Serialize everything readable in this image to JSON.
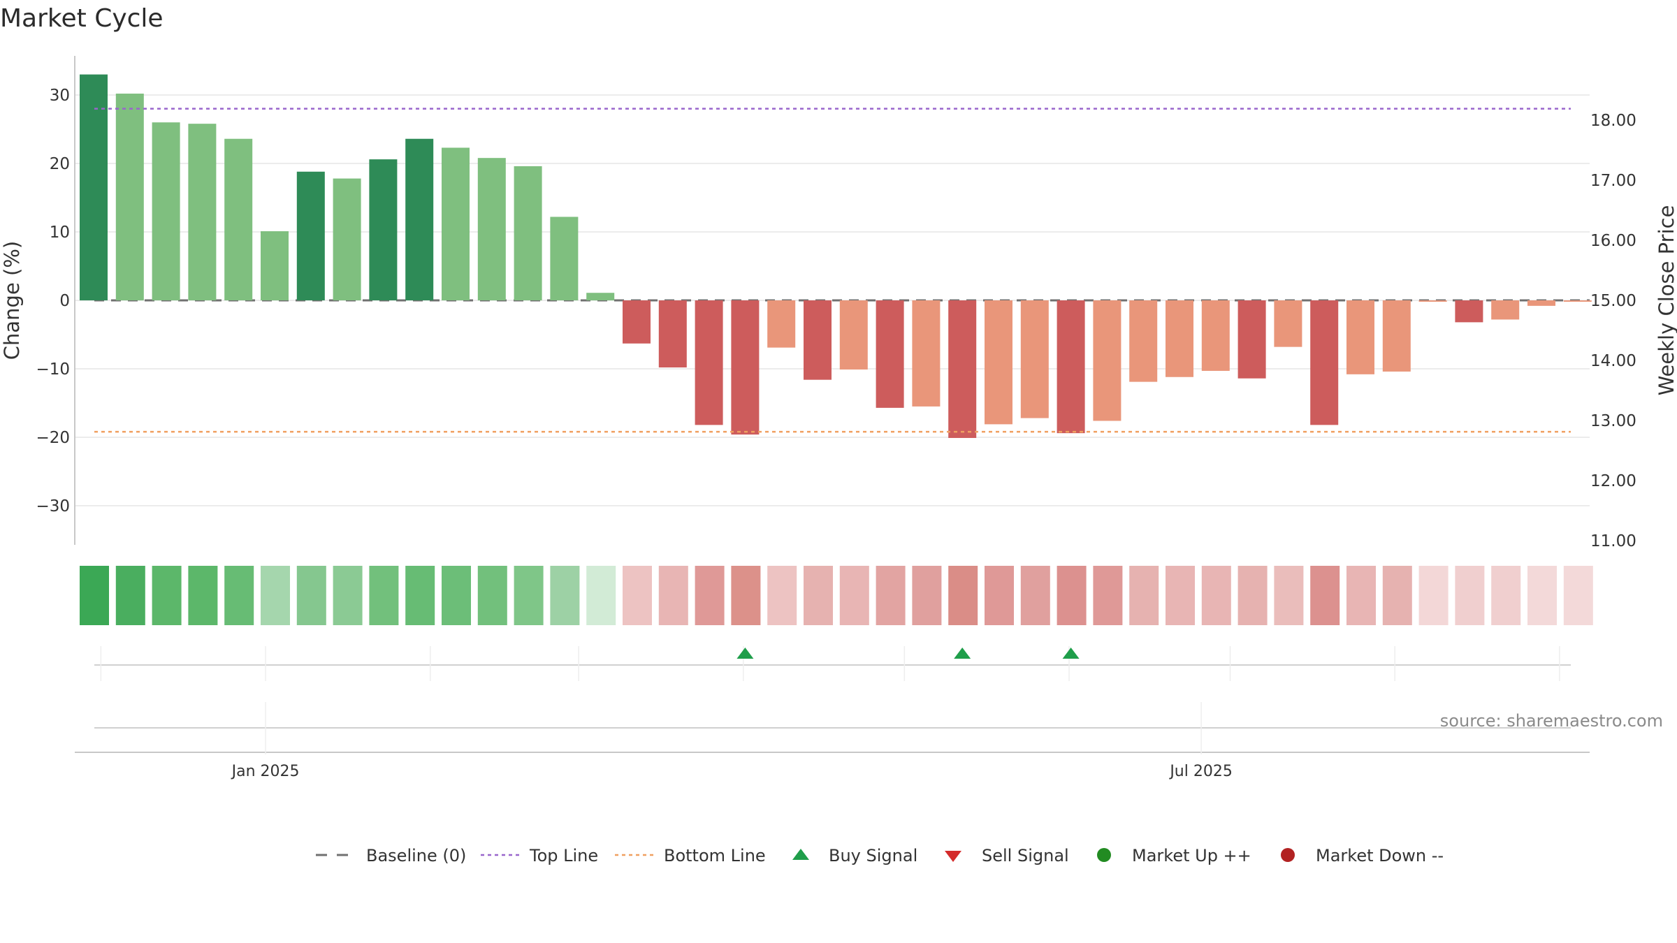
{
  "chart_data": {
    "type": "bar",
    "title": "Market Cycle",
    "ylabel_left": "Change (%)",
    "ylabel_right": "Weekly Close Price",
    "ylim_left": [
      -36,
      36
    ],
    "ylim_right": [
      10.6,
      19.0
    ],
    "left_ticks": [
      30,
      20,
      10,
      0,
      -10,
      -20,
      -30
    ],
    "left_tick_labels": [
      "30",
      "20",
      "10",
      "0",
      "−10",
      "−20",
      "−30"
    ],
    "right_ticks": [
      18,
      17,
      16,
      15,
      14,
      13,
      12,
      11
    ],
    "right_tick_labels": [
      "18.00",
      "17.00",
      "16.00",
      "15.00",
      "14.00",
      "13.00",
      "12.00",
      "11.00"
    ],
    "grid": true,
    "top_line": 28.0,
    "bottom_line": -19.2,
    "baseline": 0,
    "date_labels": [
      {
        "label": "Jan 2025",
        "index": 4.75
      },
      {
        "label": "Jul 2025",
        "index": 30.6
      }
    ],
    "values": [
      33.0,
      30.2,
      26.0,
      25.8,
      23.6,
      10.1,
      18.8,
      17.8,
      20.6,
      23.6,
      22.3,
      20.8,
      19.6,
      12.2,
      1.1,
      -6.3,
      -9.8,
      -18.2,
      -19.6,
      -6.9,
      -11.6,
      -10.1,
      -15.7,
      -15.5,
      -20.1,
      -18.1,
      -17.2,
      -19.4,
      -17.6,
      -11.9,
      -11.2,
      -10.3,
      -11.4,
      -6.8,
      -18.2,
      -10.8,
      -10.4,
      -0.2,
      -3.2,
      -2.8,
      -0.8,
      -0.2
    ],
    "bar_colors": [
      "#2e8b57",
      "#7fbf7f",
      "#7fbf7f",
      "#7fbf7f",
      "#7fbf7f",
      "#7fbf7f",
      "#2e8b57",
      "#7fbf7f",
      "#2e8b57",
      "#2e8b57",
      "#7fbf7f",
      "#7fbf7f",
      "#7fbf7f",
      "#7fbf7f",
      "#7fbf7f",
      "#cd5c5c",
      "#cd5c5c",
      "#cd5c5c",
      "#cd5c5c",
      "#e9967a",
      "#cd5c5c",
      "#e9967a",
      "#cd5c5c",
      "#e9967a",
      "#cd5c5c",
      "#e9967a",
      "#e9967a",
      "#cd5c5c",
      "#e9967a",
      "#e9967a",
      "#e9967a",
      "#e9967a",
      "#cd5c5c",
      "#e9967a",
      "#cd5c5c",
      "#e9967a",
      "#e9967a",
      "#e9967a",
      "#cd5c5c",
      "#e9967a",
      "#e9967a",
      "#e9967a"
    ],
    "heat_colors": [
      "#3ba855",
      "#4aae5f",
      "#5cb76a",
      "#5cb76a",
      "#67bc74",
      "#a5d6ad",
      "#85c78f",
      "#8bca94",
      "#72c07c",
      "#67bc74",
      "#6cbe78",
      "#72c07c",
      "#7fc688",
      "#9dd1a5",
      "#d2ebd6",
      "#edc3c2",
      "#e8b5b4",
      "#df9997",
      "#dc918a",
      "#edc3c2",
      "#e6b2b0",
      "#e8b5b4",
      "#e2a4a2",
      "#e0a09e",
      "#da8d87",
      "#df9997",
      "#e0a09e",
      "#dc918f",
      "#df9997",
      "#e6b2b0",
      "#e8b5b4",
      "#e8b5b4",
      "#e6b2b0",
      "#eabdbb",
      "#dc918f",
      "#e8b5b4",
      "#e6b2b0",
      "#f3d7d7",
      "#f0cfcf",
      "#f0cfcf",
      "#f3d9d9",
      "#f3d9d9"
    ],
    "buy_signals": [
      18,
      24,
      27
    ],
    "colors": {
      "baseline": "#707070",
      "top_line": "#9966cc",
      "bottom_line": "#f0a060",
      "buy": "#1f9e4a",
      "sell": "#d42b2b",
      "market_up": "#228b22",
      "market_down": "#b22222",
      "grid": "#e6e6e6",
      "axis": "#c8c8c8"
    }
  },
  "legend": [
    {
      "label": "Baseline (0)",
      "icon": "dash-line"
    },
    {
      "label": "Top Line",
      "icon": "dotted-purple-line"
    },
    {
      "label": "Bottom Line",
      "icon": "dotted-orange-line"
    },
    {
      "label": "Buy Signal",
      "icon": "triangle-up-icon"
    },
    {
      "label": "Sell Signal",
      "icon": "triangle-down-icon"
    },
    {
      "label": "Market Up ++",
      "icon": "circle-green-icon"
    },
    {
      "label": "Market Down --",
      "icon": "circle-red-icon"
    }
  ],
  "source": "source: sharemaestro.com"
}
